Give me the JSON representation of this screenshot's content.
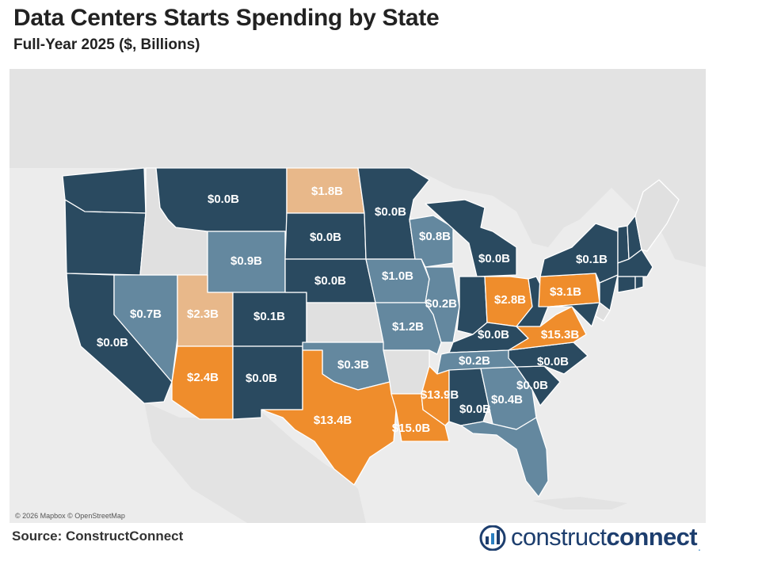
{
  "header": {
    "title": "Data Centers Starts Spending by State",
    "subtitle": "Full-Year 2025 ($, Billions)"
  },
  "map": {
    "attribution": "© 2026 Mapbox © OpenStreetMap",
    "colors": {
      "background": "#e9e9e9",
      "land": "#e0e0e0",
      "no_data": "#e0e0e0",
      "dark_blue": "#2a4a60",
      "mid_blue": "#64889f",
      "orange": "#ef8d2c",
      "light_orange": "#e8b88a"
    },
    "states": [
      {
        "state": "WA",
        "value": "",
        "color": "dark_blue"
      },
      {
        "state": "OR",
        "value": "",
        "color": "dark_blue"
      },
      {
        "state": "CA",
        "value": "$0.0B",
        "color": "dark_blue"
      },
      {
        "state": "NV",
        "value": "$0.7B",
        "color": "mid_blue"
      },
      {
        "state": "ID",
        "value": "",
        "color": "no_data"
      },
      {
        "state": "MT",
        "value": "$0.0B",
        "color": "dark_blue"
      },
      {
        "state": "WY",
        "value": "$0.9B",
        "color": "mid_blue"
      },
      {
        "state": "UT",
        "value": "$2.3B",
        "color": "light_orange"
      },
      {
        "state": "AZ",
        "value": "$2.4B",
        "color": "orange"
      },
      {
        "state": "CO",
        "value": "$0.1B",
        "color": "dark_blue"
      },
      {
        "state": "NM",
        "value": "$0.0B",
        "color": "dark_blue"
      },
      {
        "state": "ND",
        "value": "$1.8B",
        "color": "light_orange"
      },
      {
        "state": "SD",
        "value": "$0.0B",
        "color": "dark_blue"
      },
      {
        "state": "NE",
        "value": "$0.0B",
        "color": "dark_blue"
      },
      {
        "state": "KS",
        "value": "",
        "color": "no_data"
      },
      {
        "state": "OK",
        "value": "$0.3B",
        "color": "mid_blue"
      },
      {
        "state": "TX",
        "value": "$13.4B",
        "color": "orange"
      },
      {
        "state": "MN",
        "value": "$0.0B",
        "color": "dark_blue"
      },
      {
        "state": "IA",
        "value": "$1.0B",
        "color": "mid_blue"
      },
      {
        "state": "MO",
        "value": "$1.2B",
        "color": "mid_blue"
      },
      {
        "state": "AR",
        "value": "",
        "color": "no_data"
      },
      {
        "state": "LA",
        "value": "$15.0B",
        "color": "orange"
      },
      {
        "state": "WI",
        "value": "$0.8B",
        "color": "mid_blue"
      },
      {
        "state": "IL",
        "value": "$0.2B",
        "color": "mid_blue"
      },
      {
        "state": "MI",
        "value": "$0.0B",
        "color": "dark_blue"
      },
      {
        "state": "IN",
        "value": "",
        "color": "dark_blue"
      },
      {
        "state": "OH",
        "value": "$2.8B",
        "color": "orange"
      },
      {
        "state": "KY",
        "value": "$0.0B",
        "color": "dark_blue"
      },
      {
        "state": "TN",
        "value": "$0.2B",
        "color": "mid_blue"
      },
      {
        "state": "MS",
        "value": "$13.9B",
        "color": "orange"
      },
      {
        "state": "AL",
        "value": "$0.0B",
        "color": "dark_blue"
      },
      {
        "state": "GA",
        "value": "$0.4B",
        "color": "mid_blue"
      },
      {
        "state": "FL",
        "value": "",
        "color": "mid_blue"
      },
      {
        "state": "SC",
        "value": "$0.0B",
        "color": "dark_blue"
      },
      {
        "state": "NC",
        "value": "$0.0B",
        "color": "dark_blue"
      },
      {
        "state": "VA",
        "value": "$15.3B",
        "color": "orange"
      },
      {
        "state": "WV",
        "value": "",
        "color": "dark_blue"
      },
      {
        "state": "PA",
        "value": "$3.1B",
        "color": "orange"
      },
      {
        "state": "NY",
        "value": "$0.1B",
        "color": "dark_blue"
      },
      {
        "state": "NJ",
        "value": "",
        "color": "dark_blue"
      },
      {
        "state": "MD",
        "value": "",
        "color": "dark_blue"
      },
      {
        "state": "DE",
        "value": "",
        "color": "no_data"
      },
      {
        "state": "VT",
        "value": "",
        "color": "dark_blue"
      },
      {
        "state": "NH",
        "value": "",
        "color": "dark_blue"
      },
      {
        "state": "MA",
        "value": "",
        "color": "dark_blue"
      },
      {
        "state": "CT",
        "value": "",
        "color": "dark_blue"
      },
      {
        "state": "RI",
        "value": "",
        "color": "dark_blue"
      },
      {
        "state": "ME",
        "value": "",
        "color": "no_data"
      }
    ]
  },
  "footer": {
    "source": "Source: ConstructConnect",
    "logo_regular": "construct",
    "logo_bold": "connect",
    "logo_dot": "."
  }
}
